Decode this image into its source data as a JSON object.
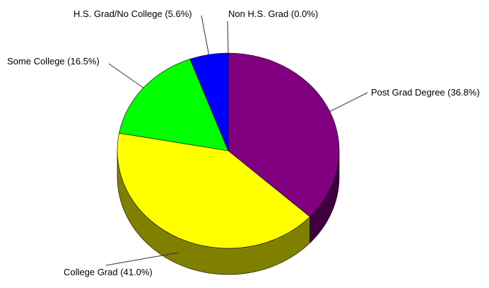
{
  "chart_data": {
    "type": "pie",
    "style": "3d",
    "title": "",
    "legend": "none",
    "slices": [
      {
        "name": "Post Grad Degree",
        "value": 36.8,
        "label": "Post Grad Degree (36.8%)",
        "color": "#800080"
      },
      {
        "name": "College Grad",
        "value": 41.0,
        "label": "College Grad (41.0%)",
        "color": "#ffff00"
      },
      {
        "name": "Some College",
        "value": 16.5,
        "label": "Some College (16.5%)",
        "color": "#00ff00"
      },
      {
        "name": "H.S. Grad/No College",
        "value": 5.6,
        "label": "H.S. Grad/No College (5.6%)",
        "color": "#0000ff"
      },
      {
        "name": "Non H.S. Grad",
        "value": 0.0,
        "label": "Non H.S. Grad (0.0%)",
        "color": "#ff0000"
      }
    ]
  }
}
